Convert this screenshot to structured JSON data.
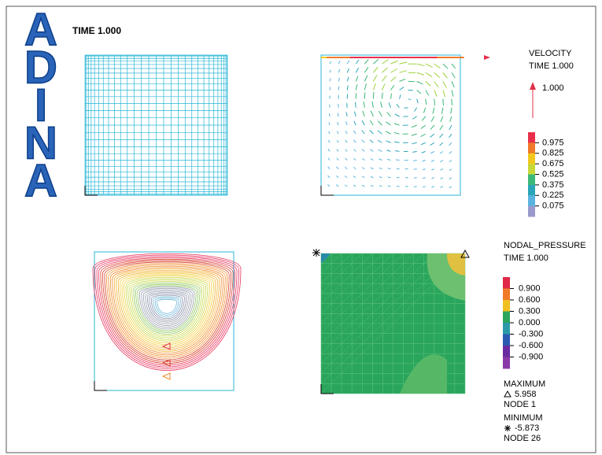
{
  "logo_letters": [
    "A",
    "D",
    "I",
    "N",
    "A"
  ],
  "time_label": "TIME 1.000",
  "velocity_legend": {
    "title": "VELOCITY",
    "time": "TIME 1.000",
    "reference_arrow_label": "1.000",
    "levels": [
      "0.975",
      "0.825",
      "0.675",
      "0.525",
      "0.375",
      "0.225",
      "0.075"
    ]
  },
  "pressure_legend": {
    "title": "NODAL_PRESSURE",
    "time": "TIME 1.000",
    "levels": [
      "0.900",
      "0.600",
      "0.300",
      "0.000",
      "-0.300",
      "-0.600",
      "-0.900"
    ],
    "maximum": {
      "label": "MAXIMUM",
      "value": "5.958",
      "node": "NODE 1"
    },
    "minimum": {
      "label": "MINIMUM",
      "value": "-5.873",
      "node": "NODE 26"
    }
  }
}
